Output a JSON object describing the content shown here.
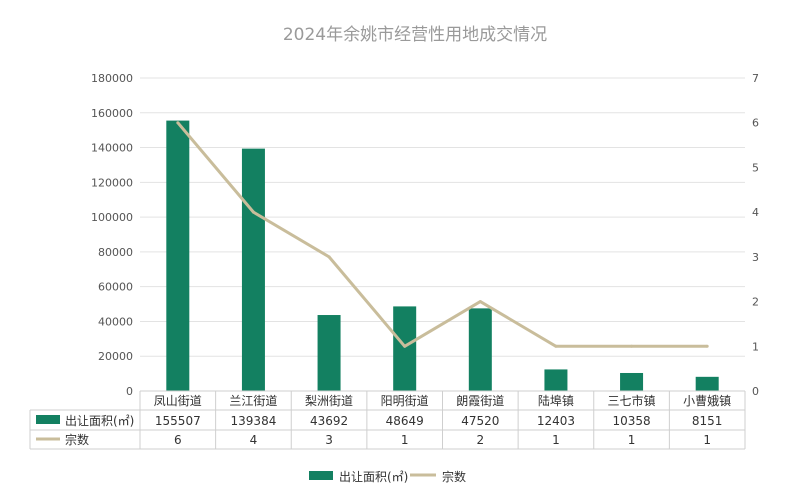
{
  "chart_data": {
    "type": "bar",
    "title": "2024年余姚市经营性用地成交情况",
    "categories": [
      "凤山街道",
      "兰江街道",
      "梨洲街道",
      "阳明街道",
      "朗霞街道",
      "陆埠镇",
      "三七市镇",
      "小曹娥镇"
    ],
    "series": [
      {
        "name": "出让面积(㎡)",
        "type": "bar",
        "axis": "left",
        "color": "#138061",
        "values": [
          155507,
          139384,
          43692,
          48649,
          47520,
          12403,
          10358,
          8151
        ]
      },
      {
        "name": "宗数",
        "type": "line",
        "axis": "right",
        "color": "#c9bd9b",
        "values": [
          6,
          4,
          3,
          1,
          2,
          1,
          1,
          1
        ]
      }
    ],
    "y_left": {
      "min": 0,
      "max": 180000,
      "step": 20000
    },
    "y_right": {
      "min": 0,
      "max": 7,
      "step": 1
    },
    "grid": true,
    "legend_position": "bottom",
    "data_table": true
  }
}
